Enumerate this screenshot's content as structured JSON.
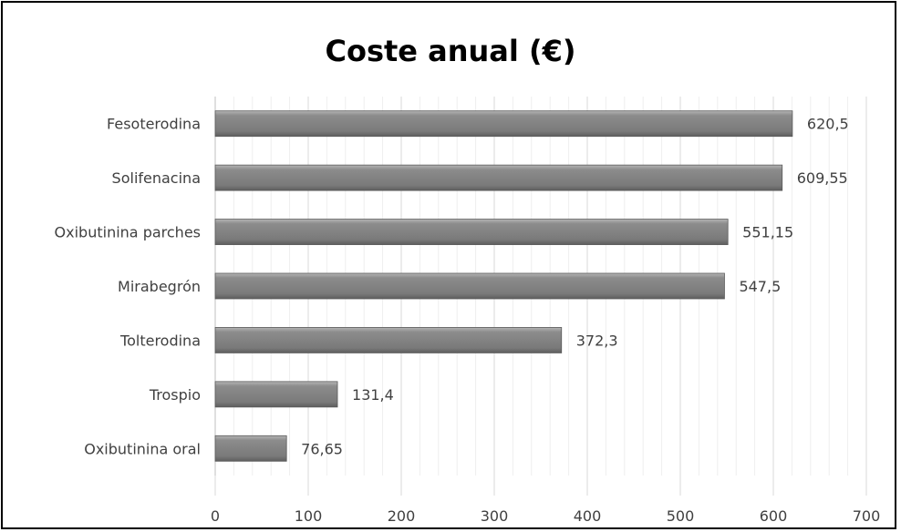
{
  "chart_data": {
    "type": "bar",
    "orientation": "horizontal",
    "title": "Coste anual (€)",
    "xlabel": "",
    "ylabel": "",
    "categories": [
      "Fesoterodina",
      "Solifenacina",
      "Oxibutinina parches",
      "Mirabegrón",
      "Tolterodina",
      "Trospio",
      "Oxibutinina oral"
    ],
    "values": [
      620.5,
      609.55,
      551.15,
      547.5,
      372.3,
      131.4,
      76.65
    ],
    "value_labels": [
      "620,5",
      "609,55",
      "551,15",
      "547,5",
      "372,3",
      "131,4",
      "76,65"
    ],
    "xlim": [
      0,
      700
    ],
    "x_ticks": [
      0,
      100,
      200,
      300,
      400,
      500,
      600,
      700
    ],
    "grid": "vertical",
    "legend": "none",
    "bar_color": "#7f7f7f",
    "grid_color": "#d9d9d9"
  }
}
